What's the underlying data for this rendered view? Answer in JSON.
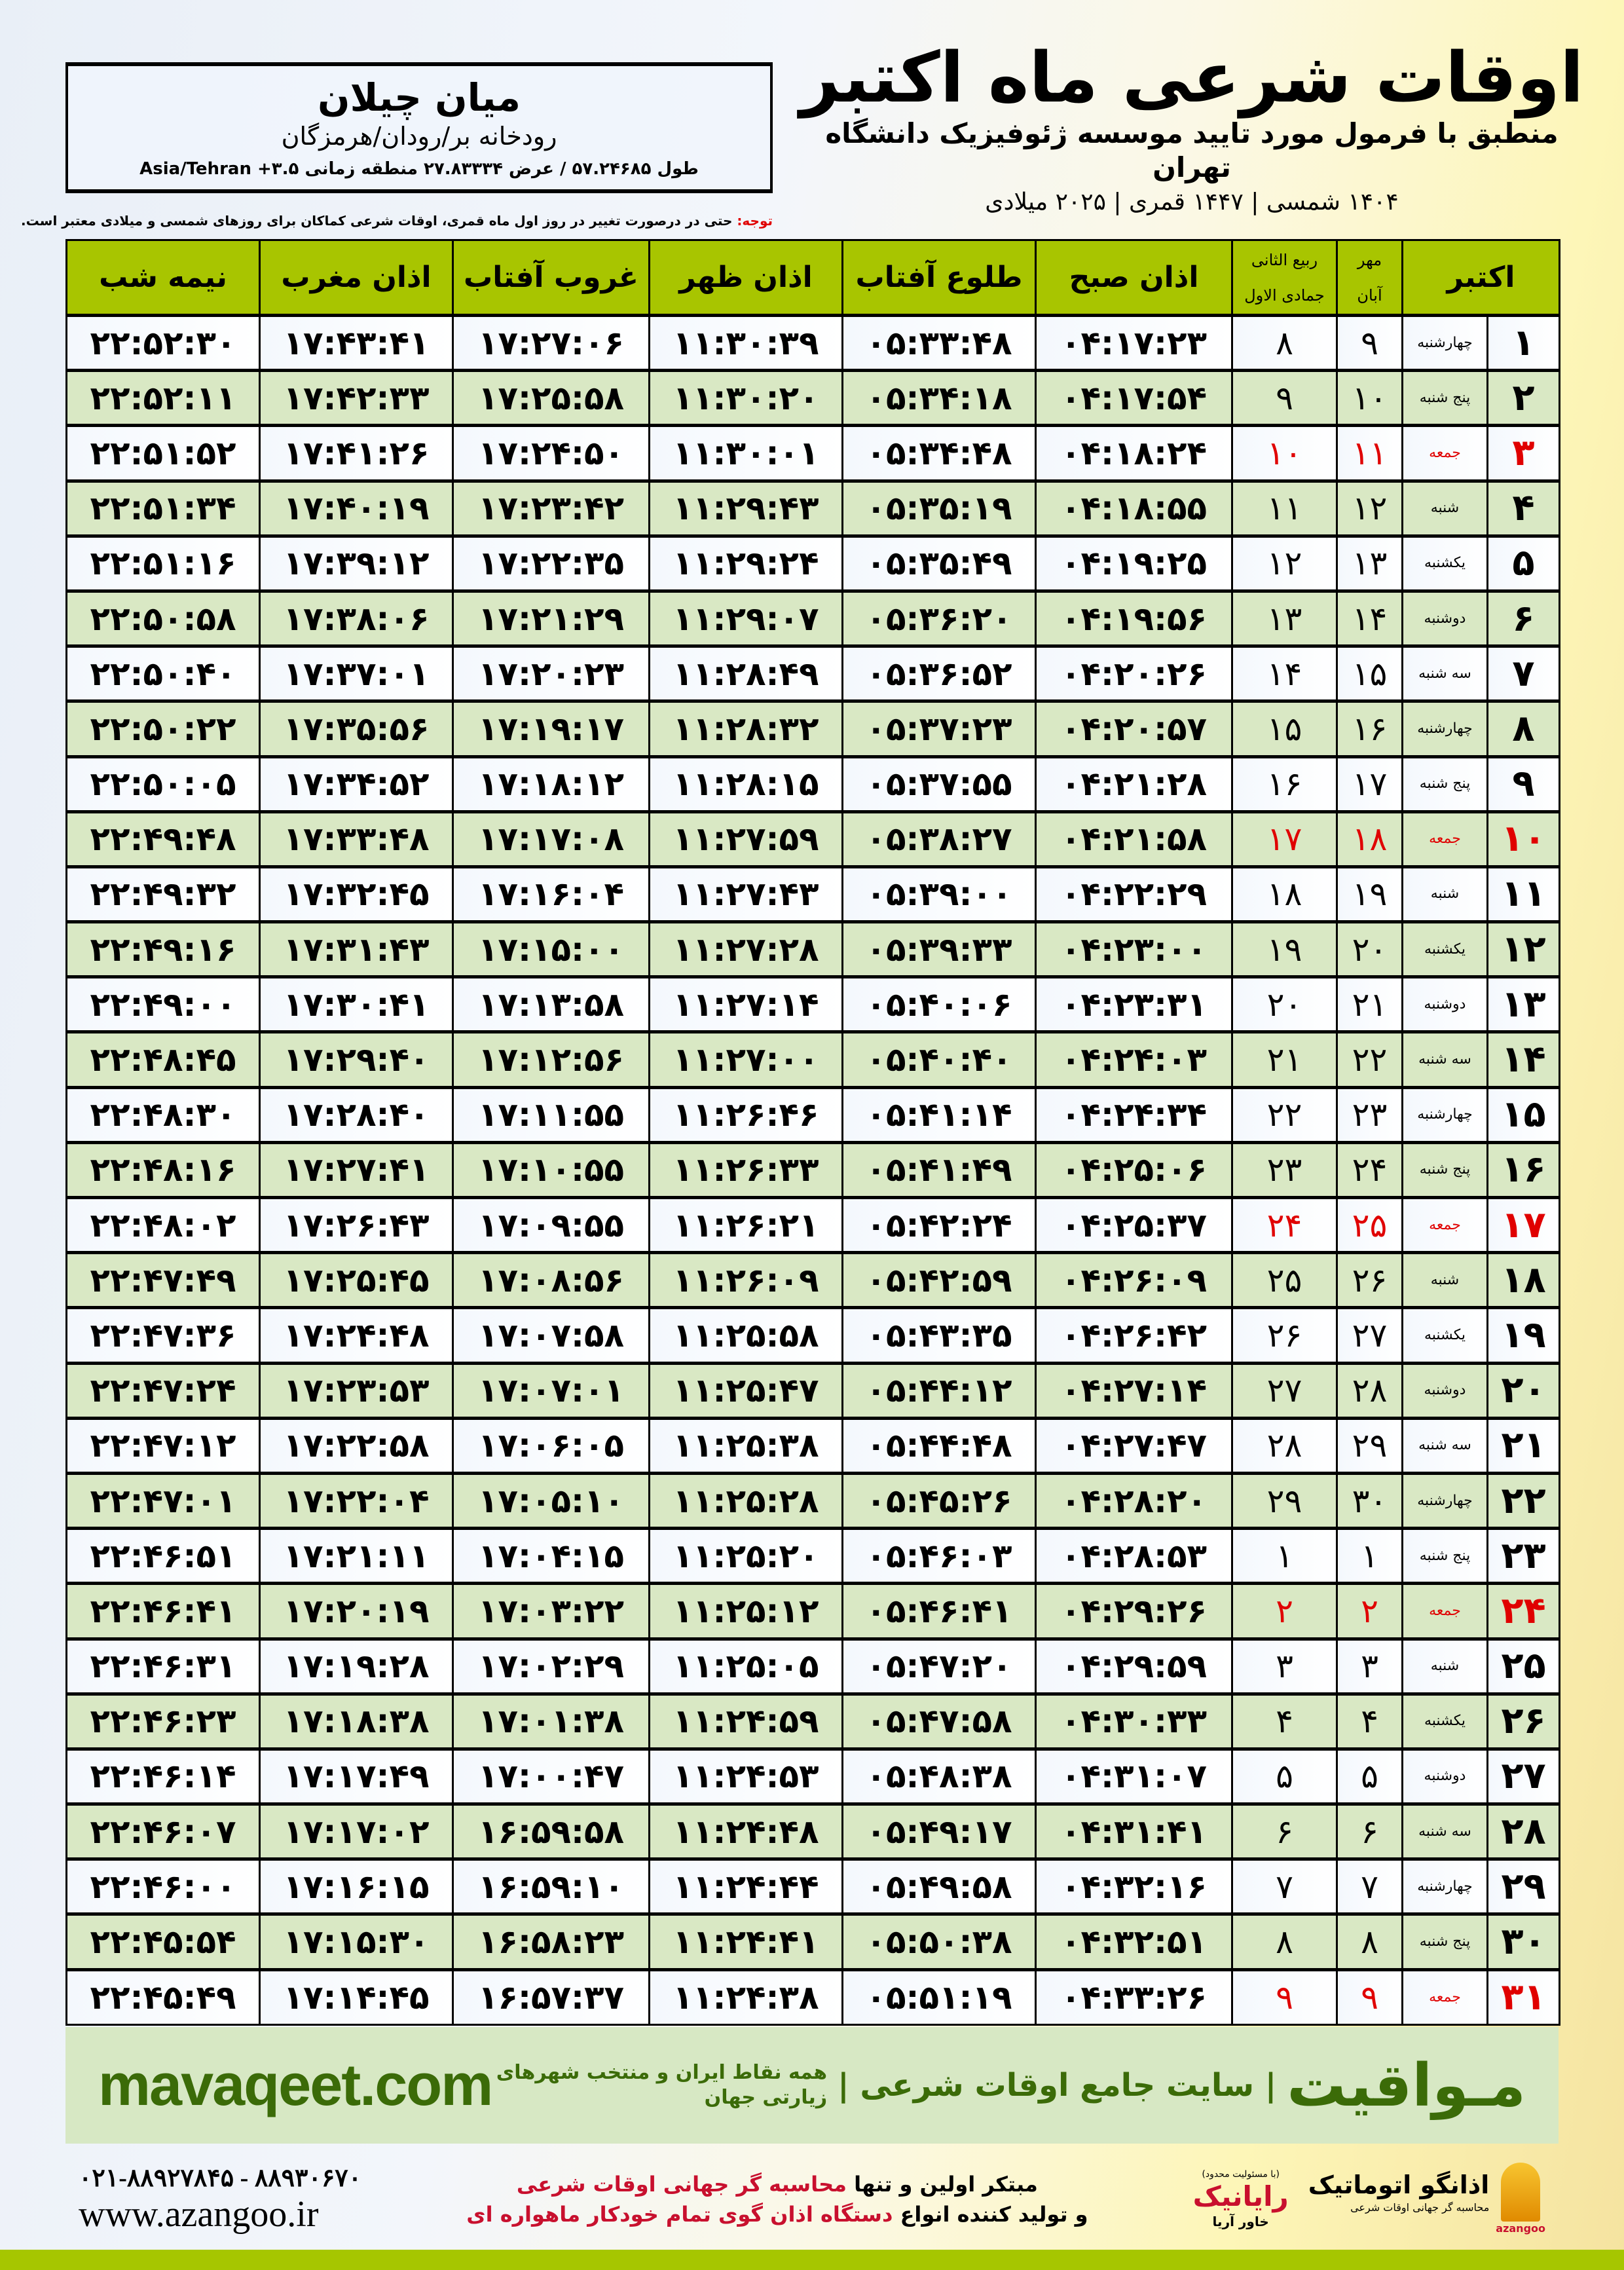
{
  "location": {
    "name": "میان چیلان",
    "region": "رودخانه بر/رودان/هرمزگان",
    "coordinates": "طول ۵۷.۲۴۶۸۵ / عرض ۲۷.۸۳۳۳۴ منطقه زمانی ۳.۵+ Asia/Tehran"
  },
  "header": {
    "title": "اوقات شرعی ماه اکتبر",
    "subtitle": "منطبق با فرمول مورد تایید موسسه ژئوفیزیک دانشگاه تهران",
    "years": "۱۴۰۴ شمسی | ۱۴۴۷ قمری | ۲۰۲۵ میلادی"
  },
  "note": {
    "label": "توجه:",
    "text": " حتی در درصورت تغییر در روز اول ماه قمری، اوقات شرعی کماکان برای روزهای شمسی و میلادی معتبر است."
  },
  "table": {
    "headers": {
      "month": "اکتبر",
      "shamsi_top": "مهر",
      "shamsi_bottom": "آبان",
      "qamari_top": "ربیع الثانی",
      "qamari_bottom": "جمادی الاول",
      "fajr": "اذان صبح",
      "sunrise": "طلوع آفتاب",
      "dhuhr": "اذان ظهر",
      "sunset": "غروب آفتاب",
      "maghrib": "اذان مغرب",
      "midnight": "نیمه شب"
    },
    "friday_color": "#e00000",
    "header_color": "#a8c500",
    "rows": [
      [
        "۱",
        "چهارشنبه",
        "۹",
        "۸",
        "۰۴:۱۷:۲۳",
        "۰۵:۳۳:۴۸",
        "۱۱:۳۰:۳۹",
        "۱۷:۲۷:۰۶",
        "۱۷:۴۳:۴۱",
        "۲۲:۵۲:۳۰"
      ],
      [
        "۲",
        "پنج شنبه",
        "۱۰",
        "۹",
        "۰۴:۱۷:۵۴",
        "۰۵:۳۴:۱۸",
        "۱۱:۳۰:۲۰",
        "۱۷:۲۵:۵۸",
        "۱۷:۴۲:۳۳",
        "۲۲:۵۲:۱۱"
      ],
      [
        "۳",
        "جمعه",
        "۱۱",
        "۱۰",
        "۰۴:۱۸:۲۴",
        "۰۵:۳۴:۴۸",
        "۱۱:۳۰:۰۱",
        "۱۷:۲۴:۵۰",
        "۱۷:۴۱:۲۶",
        "۲۲:۵۱:۵۲"
      ],
      [
        "۴",
        "شنبه",
        "۱۲",
        "۱۱",
        "۰۴:۱۸:۵۵",
        "۰۵:۳۵:۱۹",
        "۱۱:۲۹:۴۳",
        "۱۷:۲۳:۴۲",
        "۱۷:۴۰:۱۹",
        "۲۲:۵۱:۳۴"
      ],
      [
        "۵",
        "یکشنبه",
        "۱۳",
        "۱۲",
        "۰۴:۱۹:۲۵",
        "۰۵:۳۵:۴۹",
        "۱۱:۲۹:۲۴",
        "۱۷:۲۲:۳۵",
        "۱۷:۳۹:۱۲",
        "۲۲:۵۱:۱۶"
      ],
      [
        "۶",
        "دوشنبه",
        "۱۴",
        "۱۳",
        "۰۴:۱۹:۵۶",
        "۰۵:۳۶:۲۰",
        "۱۱:۲۹:۰۷",
        "۱۷:۲۱:۲۹",
        "۱۷:۳۸:۰۶",
        "۲۲:۵۰:۵۸"
      ],
      [
        "۷",
        "سه شنبه",
        "۱۵",
        "۱۴",
        "۰۴:۲۰:۲۶",
        "۰۵:۳۶:۵۲",
        "۱۱:۲۸:۴۹",
        "۱۷:۲۰:۲۳",
        "۱۷:۳۷:۰۱",
        "۲۲:۵۰:۴۰"
      ],
      [
        "۸",
        "چهارشنبه",
        "۱۶",
        "۱۵",
        "۰۴:۲۰:۵۷",
        "۰۵:۳۷:۲۳",
        "۱۱:۲۸:۳۲",
        "۱۷:۱۹:۱۷",
        "۱۷:۳۵:۵۶",
        "۲۲:۵۰:۲۲"
      ],
      [
        "۹",
        "پنج شنبه",
        "۱۷",
        "۱۶",
        "۰۴:۲۱:۲۸",
        "۰۵:۳۷:۵۵",
        "۱۱:۲۸:۱۵",
        "۱۷:۱۸:۱۲",
        "۱۷:۳۴:۵۲",
        "۲۲:۵۰:۰۵"
      ],
      [
        "۱۰",
        "جمعه",
        "۱۸",
        "۱۷",
        "۰۴:۲۱:۵۸",
        "۰۵:۳۸:۲۷",
        "۱۱:۲۷:۵۹",
        "۱۷:۱۷:۰۸",
        "۱۷:۳۳:۴۸",
        "۲۲:۴۹:۴۸"
      ],
      [
        "۱۱",
        "شنبه",
        "۱۹",
        "۱۸",
        "۰۴:۲۲:۲۹",
        "۰۵:۳۹:۰۰",
        "۱۱:۲۷:۴۳",
        "۱۷:۱۶:۰۴",
        "۱۷:۳۲:۴۵",
        "۲۲:۴۹:۳۲"
      ],
      [
        "۱۲",
        "یکشنبه",
        "۲۰",
        "۱۹",
        "۰۴:۲۳:۰۰",
        "۰۵:۳۹:۳۳",
        "۱۱:۲۷:۲۸",
        "۱۷:۱۵:۰۰",
        "۱۷:۳۱:۴۳",
        "۲۲:۴۹:۱۶"
      ],
      [
        "۱۳",
        "دوشنبه",
        "۲۱",
        "۲۰",
        "۰۴:۲۳:۳۱",
        "۰۵:۴۰:۰۶",
        "۱۱:۲۷:۱۴",
        "۱۷:۱۳:۵۸",
        "۱۷:۳۰:۴۱",
        "۲۲:۴۹:۰۰"
      ],
      [
        "۱۴",
        "سه شنبه",
        "۲۲",
        "۲۱",
        "۰۴:۲۴:۰۳",
        "۰۵:۴۰:۴۰",
        "۱۱:۲۷:۰۰",
        "۱۷:۱۲:۵۶",
        "۱۷:۲۹:۴۰",
        "۲۲:۴۸:۴۵"
      ],
      [
        "۱۵",
        "چهارشنبه",
        "۲۳",
        "۲۲",
        "۰۴:۲۴:۳۴",
        "۰۵:۴۱:۱۴",
        "۱۱:۲۶:۴۶",
        "۱۷:۱۱:۵۵",
        "۱۷:۲۸:۴۰",
        "۲۲:۴۸:۳۰"
      ],
      [
        "۱۶",
        "پنج شنبه",
        "۲۴",
        "۲۳",
        "۰۴:۲۵:۰۶",
        "۰۵:۴۱:۴۹",
        "۱۱:۲۶:۳۳",
        "۱۷:۱۰:۵۵",
        "۱۷:۲۷:۴۱",
        "۲۲:۴۸:۱۶"
      ],
      [
        "۱۷",
        "جمعه",
        "۲۵",
        "۲۴",
        "۰۴:۲۵:۳۷",
        "۰۵:۴۲:۲۴",
        "۱۱:۲۶:۲۱",
        "۱۷:۰۹:۵۵",
        "۱۷:۲۶:۴۳",
        "۲۲:۴۸:۰۲"
      ],
      [
        "۱۸",
        "شنبه",
        "۲۶",
        "۲۵",
        "۰۴:۲۶:۰۹",
        "۰۵:۴۲:۵۹",
        "۱۱:۲۶:۰۹",
        "۱۷:۰۸:۵۶",
        "۱۷:۲۵:۴۵",
        "۲۲:۴۷:۴۹"
      ],
      [
        "۱۹",
        "یکشنبه",
        "۲۷",
        "۲۶",
        "۰۴:۲۶:۴۲",
        "۰۵:۴۳:۳۵",
        "۱۱:۲۵:۵۸",
        "۱۷:۰۷:۵۸",
        "۱۷:۲۴:۴۸",
        "۲۲:۴۷:۳۶"
      ],
      [
        "۲۰",
        "دوشنبه",
        "۲۸",
        "۲۷",
        "۰۴:۲۷:۱۴",
        "۰۵:۴۴:۱۲",
        "۱۱:۲۵:۴۷",
        "۱۷:۰۷:۰۱",
        "۱۷:۲۳:۵۳",
        "۲۲:۴۷:۲۴"
      ],
      [
        "۲۱",
        "سه شنبه",
        "۲۹",
        "۲۸",
        "۰۴:۲۷:۴۷",
        "۰۵:۴۴:۴۸",
        "۱۱:۲۵:۳۸",
        "۱۷:۰۶:۰۵",
        "۱۷:۲۲:۵۸",
        "۲۲:۴۷:۱۲"
      ],
      [
        "۲۲",
        "چهارشنبه",
        "۳۰",
        "۲۹",
        "۰۴:۲۸:۲۰",
        "۰۵:۴۵:۲۶",
        "۱۱:۲۵:۲۸",
        "۱۷:۰۵:۱۰",
        "۱۷:۲۲:۰۴",
        "۲۲:۴۷:۰۱"
      ],
      [
        "۲۳",
        "پنج شنبه",
        "۱",
        "۱",
        "۰۴:۲۸:۵۳",
        "۰۵:۴۶:۰۳",
        "۱۱:۲۵:۲۰",
        "۱۷:۰۴:۱۵",
        "۱۷:۲۱:۱۱",
        "۲۲:۴۶:۵۱"
      ],
      [
        "۲۴",
        "جمعه",
        "۲",
        "۲",
        "۰۴:۲۹:۲۶",
        "۰۵:۴۶:۴۱",
        "۱۱:۲۵:۱۲",
        "۱۷:۰۳:۲۲",
        "۱۷:۲۰:۱۹",
        "۲۲:۴۶:۴۱"
      ],
      [
        "۲۵",
        "شنبه",
        "۳",
        "۳",
        "۰۴:۲۹:۵۹",
        "۰۵:۴۷:۲۰",
        "۱۱:۲۵:۰۵",
        "۱۷:۰۲:۲۹",
        "۱۷:۱۹:۲۸",
        "۲۲:۴۶:۳۱"
      ],
      [
        "۲۶",
        "یکشنبه",
        "۴",
        "۴",
        "۰۴:۳۰:۳۳",
        "۰۵:۴۷:۵۸",
        "۱۱:۲۴:۵۹",
        "۱۷:۰۱:۳۸",
        "۱۷:۱۸:۳۸",
        "۲۲:۴۶:۲۳"
      ],
      [
        "۲۷",
        "دوشنبه",
        "۵",
        "۵",
        "۰۴:۳۱:۰۷",
        "۰۵:۴۸:۳۸",
        "۱۱:۲۴:۵۳",
        "۱۷:۰۰:۴۷",
        "۱۷:۱۷:۴۹",
        "۲۲:۴۶:۱۴"
      ],
      [
        "۲۸",
        "سه شنبه",
        "۶",
        "۶",
        "۰۴:۳۱:۴۱",
        "۰۵:۴۹:۱۷",
        "۱۱:۲۴:۴۸",
        "۱۶:۵۹:۵۸",
        "۱۷:۱۷:۰۲",
        "۲۲:۴۶:۰۷"
      ],
      [
        "۲۹",
        "چهارشنبه",
        "۷",
        "۷",
        "۰۴:۳۲:۱۶",
        "۰۵:۴۹:۵۸",
        "۱۱:۲۴:۴۴",
        "۱۶:۵۹:۱۰",
        "۱۷:۱۶:۱۵",
        "۲۲:۴۶:۰۰"
      ],
      [
        "۳۰",
        "پنج شنبه",
        "۸",
        "۸",
        "۰۴:۳۲:۵۱",
        "۰۵:۵۰:۳۸",
        "۱۱:۲۴:۴۱",
        "۱۶:۵۸:۲۳",
        "۱۷:۱۵:۳۰",
        "۲۲:۴۵:۵۴"
      ],
      [
        "۳۱",
        "جمعه",
        "۹",
        "۹",
        "۰۴:۳۳:۲۶",
        "۰۵:۵۱:۱۹",
        "۱۱:۲۴:۳۸",
        "۱۶:۵۷:۳۷",
        "۱۷:۱۴:۴۵",
        "۲۲:۴۵:۴۹"
      ]
    ]
  },
  "footer_band": {
    "site_en": "mavaqeet.com",
    "brand_fa": "مـواقیت",
    "tagline": "| سایت جامع اوقات شرعی |",
    "tagline_small": "همه نقاط ایران و منتخب شهرهای زیارتی جهان",
    "brand_color": "#3b6b08"
  },
  "contact": {
    "phones": "۰۲۱-۸۸۹۲۷۸۴۵ - ۸۸۹۳۰۶۷۰",
    "website": "www.azangoo.ir",
    "ad_line1_a": "مبتکر اولین و تنها ",
    "ad_line1_b": "محاسبه گر جهانی اوقات شرعی",
    "ad_line2_a": "و تولید کننده انواع ",
    "ad_line2_b": "دستگاه اذان گوی تمام خودکار ماهواره ای"
  },
  "logos": {
    "rayanik_tiny": "(با مسئولیت محدود)",
    "rayanik": "رایانیک",
    "rayanik_side": "خاور آریا",
    "azangoo": "اذانگو اتوماتیک",
    "azangoo_tag": "محاسبه گر جهانی اوقات شرعی",
    "azangoo_en": "azangoo"
  }
}
